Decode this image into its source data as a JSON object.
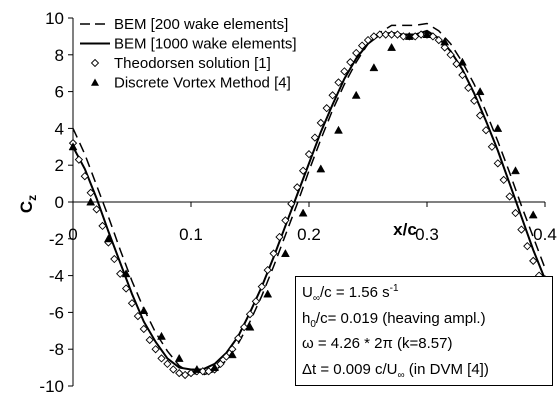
{
  "chart_data": {
    "type": "line",
    "title": "",
    "xlabel": "x/c",
    "ylabel": "C",
    "ylabel_sub": "z",
    "xlim": [
      0,
      0.4
    ],
    "ylim": [
      -10,
      10
    ],
    "xticks": [
      0,
      0.1,
      0.2,
      0.3,
      0.4
    ],
    "xtick_labels": [
      "0",
      "0.1",
      "0.2",
      "0.3",
      "0.4"
    ],
    "yticks": [
      -10,
      -8,
      -6,
      -4,
      -2,
      0,
      2,
      4,
      6,
      8,
      10
    ],
    "ytick_labels": [
      "-10",
      "-8",
      "-6",
      "-4",
      "-2",
      "0",
      "2",
      "4",
      "6",
      "8",
      "10"
    ],
    "grid": false,
    "legend_position": "top-left",
    "series": [
      {
        "name": "BEM [200  wake elements]",
        "style": "dashed",
        "x": [
          0,
          0.01,
          0.02,
          0.03,
          0.04,
          0.05,
          0.06,
          0.07,
          0.08,
          0.09,
          0.1,
          0.11,
          0.12,
          0.13,
          0.14,
          0.15,
          0.16,
          0.17,
          0.18,
          0.19,
          0.2,
          0.21,
          0.22,
          0.23,
          0.24,
          0.25,
          0.26,
          0.27,
          0.28,
          0.29,
          0.3,
          0.31,
          0.32,
          0.33,
          0.34,
          0.35,
          0.36,
          0.37,
          0.38,
          0.39,
          0.4
        ],
        "y": [
          4.0,
          2.6,
          0.9,
          -0.8,
          -2.6,
          -4.3,
          -5.8,
          -7.1,
          -8.1,
          -8.9,
          -9.3,
          -9.4,
          -9.2,
          -8.6,
          -7.7,
          -6.5,
          -5.1,
          -3.5,
          -1.8,
          -0.1,
          1.7,
          3.4,
          5.0,
          6.4,
          7.6,
          8.6,
          9.2,
          9.6,
          9.6,
          9.6,
          9.7,
          9.3,
          8.6,
          7.6,
          6.4,
          4.9,
          3.3,
          1.6,
          -0.2,
          -1.9,
          -3.6
        ]
      },
      {
        "name": "BEM [1000 wake elements]",
        "style": "solid",
        "x": [
          0,
          0.01,
          0.02,
          0.03,
          0.04,
          0.05,
          0.06,
          0.07,
          0.08,
          0.09,
          0.1,
          0.11,
          0.12,
          0.13,
          0.14,
          0.15,
          0.16,
          0.17,
          0.18,
          0.19,
          0.2,
          0.21,
          0.22,
          0.23,
          0.24,
          0.25,
          0.26,
          0.27,
          0.28,
          0.29,
          0.3,
          0.31,
          0.32,
          0.33,
          0.34,
          0.35,
          0.36,
          0.37,
          0.38,
          0.39,
          0.4
        ],
        "y": [
          3.0,
          1.8,
          0.2,
          -1.6,
          -3.3,
          -5.0,
          -6.5,
          -7.6,
          -8.5,
          -9.0,
          -9.1,
          -9.1,
          -8.8,
          -8.2,
          -7.3,
          -6.0,
          -4.6,
          -3.0,
          -1.3,
          0.4,
          2.1,
          3.8,
          5.3,
          6.7,
          7.8,
          8.6,
          9.1,
          9.2,
          9.1,
          9.1,
          9.3,
          8.9,
          8.2,
          7.2,
          5.9,
          4.4,
          2.8,
          1.0,
          -0.8,
          -2.6,
          -4.2
        ]
      },
      {
        "name": "Theodorsen solution [1]",
        "style": "open-diamond",
        "x": [
          0.0,
          0.005,
          0.01,
          0.015,
          0.02,
          0.025,
          0.03,
          0.035,
          0.04,
          0.045,
          0.05,
          0.055,
          0.06,
          0.065,
          0.07,
          0.075,
          0.08,
          0.085,
          0.09,
          0.095,
          0.1,
          0.105,
          0.11,
          0.115,
          0.12,
          0.125,
          0.13,
          0.135,
          0.14,
          0.145,
          0.15,
          0.155,
          0.16,
          0.165,
          0.17,
          0.175,
          0.18,
          0.185,
          0.19,
          0.195,
          0.2,
          0.205,
          0.21,
          0.215,
          0.22,
          0.225,
          0.23,
          0.235,
          0.24,
          0.245,
          0.25,
          0.255,
          0.26,
          0.265,
          0.27,
          0.275,
          0.28,
          0.285,
          0.29,
          0.295,
          0.3,
          0.305,
          0.31,
          0.315,
          0.32,
          0.325,
          0.33,
          0.335,
          0.34,
          0.345,
          0.35,
          0.355,
          0.36,
          0.365,
          0.37,
          0.375,
          0.38,
          0.385,
          0.39,
          0.395,
          0.4
        ],
        "y": [
          3.2,
          2.3,
          1.4,
          0.5,
          -0.4,
          -1.3,
          -2.2,
          -3.1,
          -3.9,
          -4.7,
          -5.5,
          -6.2,
          -6.9,
          -7.5,
          -8.0,
          -8.5,
          -8.8,
          -9.1,
          -9.3,
          -9.4,
          -9.3,
          -9.2,
          -9.2,
          -9.2,
          -9.1,
          -8.8,
          -8.4,
          -8.0,
          -7.4,
          -6.8,
          -6.1,
          -5.4,
          -4.6,
          -3.7,
          -2.8,
          -1.9,
          -1.0,
          -0.1,
          0.8,
          1.7,
          2.6,
          3.5,
          4.3,
          5.1,
          5.8,
          6.5,
          7.1,
          7.6,
          8.1,
          8.5,
          8.8,
          9.0,
          9.1,
          9.1,
          9.1,
          9.1,
          9.0,
          9.0,
          9.0,
          9.1,
          9.1,
          9.0,
          8.8,
          8.4,
          8.0,
          7.5,
          6.9,
          6.2,
          5.5,
          4.7,
          3.9,
          3.0,
          2.1,
          1.2,
          0.3,
          -0.6,
          -1.5,
          -2.4,
          -3.2,
          -4.0,
          -4.2
        ]
      },
      {
        "name": "Discrete Vortex Method [4]",
        "style": "filled-triangle",
        "x": [
          0.0,
          0.015,
          0.03,
          0.045,
          0.06,
          0.075,
          0.09,
          0.105,
          0.12,
          0.135,
          0.15,
          0.165,
          0.18,
          0.195,
          0.21,
          0.225,
          0.24,
          0.255,
          0.27,
          0.285,
          0.3,
          0.315,
          0.33,
          0.345,
          0.36,
          0.375,
          0.39
        ],
        "y": [
          3.0,
          0.0,
          -2.0,
          -3.9,
          -5.9,
          -7.3,
          -8.5,
          -9.1,
          -9.0,
          -8.3,
          -6.8,
          -5.0,
          -2.8,
          -0.6,
          1.8,
          3.9,
          5.8,
          7.3,
          8.4,
          9.0,
          9.1,
          8.7,
          7.6,
          6.0,
          4.0,
          1.7,
          -0.7
        ]
      }
    ]
  },
  "infobox": {
    "line1_a": "U",
    "line1_sub": "∞",
    "line1_b": "/c = 1.56 s",
    "line1_sup": "-1",
    "line2_a": "h",
    "line2_sub": "0",
    "line2_b": "/c= 0.019 (heaving ampl.)",
    "line3": "ω = 4.26 * 2π (k=8.57)",
    "line4_a": "Δt = 0.009 c/U",
    "line4_sub": "∞",
    "line4_b": " (in DVM [4])"
  }
}
